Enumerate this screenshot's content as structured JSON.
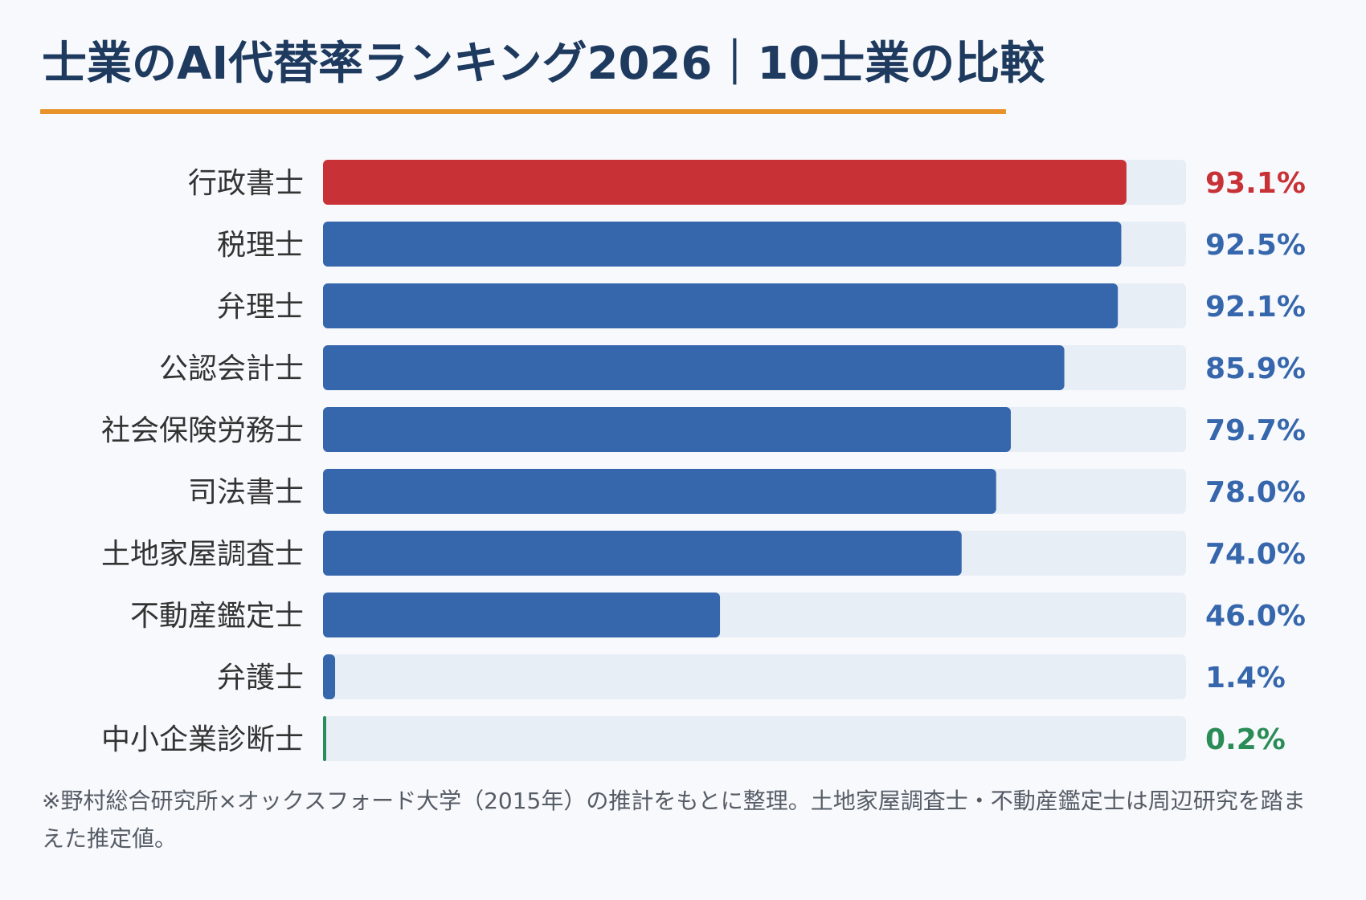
{
  "title": "士業のAI代替率ランキング2026｜10士業の比較",
  "footnote": "※野村総合研究所×オックスフォード大学（2015年）の推計をもとに整理。土地家屋調査士・不動産鑑定士は周辺研究を踏まえた推定値。",
  "colors": {
    "highlight": "#c83237",
    "primary": "#3667ad",
    "low": "#2a8c57",
    "track": "#e8eef5",
    "label": "#333333",
    "rule": "#e8922a"
  },
  "chart_data": {
    "type": "bar",
    "orientation": "horizontal",
    "categories": [
      "行政書士",
      "税理士",
      "弁理士",
      "公認会計士",
      "社会保険労務士",
      "司法書士",
      "土地家屋調査士",
      "不動産鑑定士",
      "弁護士",
      "中小企業診断士"
    ],
    "values": [
      93.1,
      92.5,
      92.1,
      85.9,
      79.7,
      78.0,
      74.0,
      46.0,
      1.4,
      0.2
    ],
    "value_labels": [
      "93.1%",
      "92.5%",
      "92.1%",
      "85.9%",
      "79.7%",
      "78.0%",
      "74.0%",
      "46.0%",
      "1.4%",
      "0.2%"
    ],
    "bar_colors": [
      "highlight",
      "primary",
      "primary",
      "primary",
      "primary",
      "primary",
      "primary",
      "primary",
      "primary",
      "low"
    ],
    "xlim": [
      0,
      100
    ],
    "grid": false,
    "legend": "none"
  }
}
